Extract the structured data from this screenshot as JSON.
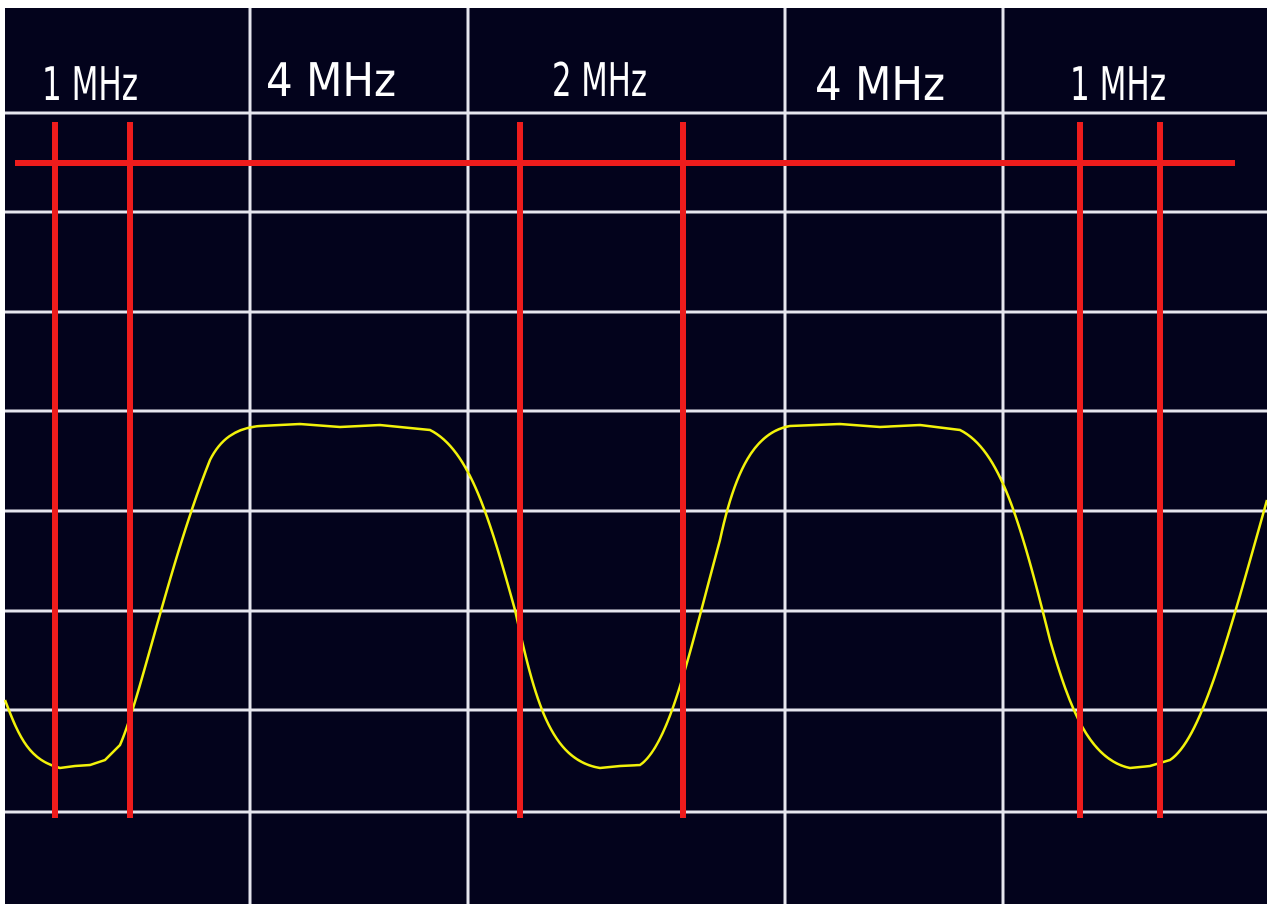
{
  "labels": [
    "1 MHz",
    "4 MHz",
    "2 MHz",
    "4 MHz",
    "1 MHz"
  ]
}
